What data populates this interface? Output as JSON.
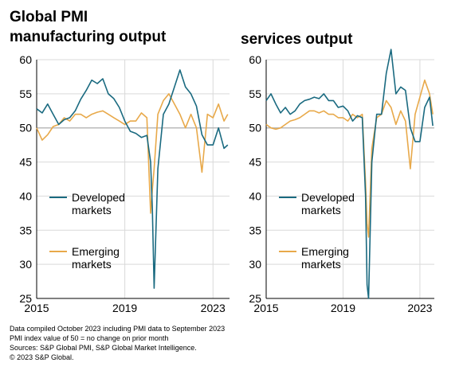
{
  "title_left_line1": "Global PMI",
  "title_left_line2": "manufacturing output",
  "title_right": "services output",
  "footnotes": [
    "Data compiled October 2023 including PMI data to September 2023",
    "PMI index value of 50 = no change on prior month",
    "Sources: S&P Global PMI, S&P Global Market Intelligence.",
    "© 2023 S&P Global."
  ],
  "colors": {
    "developed": "#1a6a80",
    "emerging": "#e8a94a",
    "reference": "#b0b0b0",
    "grid": "#d9d9d9"
  },
  "chart_data": [
    {
      "type": "line",
      "title": "manufacturing output",
      "ylim": [
        25,
        60
      ],
      "yticks": [
        25,
        30,
        35,
        40,
        45,
        50,
        55,
        60
      ],
      "xlim": [
        2015.0,
        2023.75
      ],
      "xticks": [
        2015,
        2019,
        2023
      ],
      "xtick_labels": [
        "2015",
        "2019",
        "2023"
      ],
      "reference_line": 50,
      "legend": [
        "Developed markets",
        "Emerging markets"
      ],
      "series": [
        {
          "name": "Developed markets",
          "x": [
            2015.0,
            2015.25,
            2015.5,
            2015.75,
            2016.0,
            2016.25,
            2016.5,
            2016.75,
            2017.0,
            2017.25,
            2017.5,
            2017.75,
            2018.0,
            2018.25,
            2018.5,
            2018.75,
            2019.0,
            2019.25,
            2019.5,
            2019.75,
            2020.0,
            2020.17,
            2020.25,
            2020.33,
            2020.5,
            2020.75,
            2021.0,
            2021.25,
            2021.5,
            2021.75,
            2022.0,
            2022.25,
            2022.5,
            2022.75,
            2023.0,
            2023.25,
            2023.5,
            2023.67
          ],
          "y": [
            52.8,
            52.2,
            53.5,
            52.0,
            50.5,
            51.2,
            51.5,
            52.5,
            54.2,
            55.5,
            57.0,
            56.5,
            57.2,
            55.0,
            54.3,
            53.0,
            51.0,
            49.5,
            49.2,
            48.6,
            48.9,
            45.0,
            38.0,
            26.5,
            44.0,
            52.0,
            53.5,
            56.0,
            58.5,
            56.0,
            55.0,
            53.2,
            49.0,
            47.5,
            47.5,
            50.0,
            47.0,
            47.5
          ]
        },
        {
          "name": "Emerging markets",
          "x": [
            2015.0,
            2015.25,
            2015.5,
            2015.75,
            2016.0,
            2016.25,
            2016.5,
            2016.75,
            2017.0,
            2017.25,
            2017.5,
            2017.75,
            2018.0,
            2018.25,
            2018.5,
            2018.75,
            2019.0,
            2019.25,
            2019.5,
            2019.75,
            2020.0,
            2020.17,
            2020.25,
            2020.33,
            2020.5,
            2020.75,
            2021.0,
            2021.25,
            2021.5,
            2021.75,
            2022.0,
            2022.25,
            2022.5,
            2022.75,
            2023.0,
            2023.25,
            2023.5,
            2023.67
          ],
          "y": [
            50.0,
            48.2,
            49.0,
            50.2,
            50.5,
            51.5,
            51.0,
            52.0,
            52.0,
            51.5,
            52.0,
            52.3,
            52.5,
            52.0,
            51.5,
            51.0,
            50.5,
            51.0,
            51.0,
            52.2,
            51.5,
            37.5,
            41.0,
            44.0,
            52.0,
            54.0,
            55.0,
            53.5,
            52.0,
            50.0,
            52.0,
            50.0,
            43.5,
            52.0,
            51.5,
            53.5,
            51.0,
            52.0
          ]
        }
      ]
    },
    {
      "type": "line",
      "title": "services output",
      "ylim": [
        25,
        60
      ],
      "yticks": [
        25,
        30,
        35,
        40,
        45,
        50,
        55,
        60
      ],
      "xlim": [
        2015.0,
        2023.75
      ],
      "xticks": [
        2015,
        2019,
        2023
      ],
      "xtick_labels": [
        "2015",
        "2019",
        "2023"
      ],
      "reference_line": 50,
      "legend": [
        "Developed markets",
        "Emerging markets"
      ],
      "series": [
        {
          "name": "Developed markets",
          "x": [
            2015.0,
            2015.25,
            2015.5,
            2015.75,
            2016.0,
            2016.25,
            2016.5,
            2016.75,
            2017.0,
            2017.25,
            2017.5,
            2017.75,
            2018.0,
            2018.25,
            2018.5,
            2018.75,
            2019.0,
            2019.25,
            2019.5,
            2019.75,
            2020.0,
            2020.17,
            2020.25,
            2020.33,
            2020.5,
            2020.75,
            2021.0,
            2021.25,
            2021.5,
            2021.75,
            2022.0,
            2022.25,
            2022.5,
            2022.75,
            2023.0,
            2023.25,
            2023.5,
            2023.67
          ],
          "y": [
            54.0,
            55.0,
            53.5,
            52.2,
            53.0,
            52.0,
            52.5,
            53.5,
            54.0,
            54.2,
            54.5,
            54.3,
            55.0,
            54.0,
            54.0,
            53.0,
            53.2,
            52.5,
            51.0,
            51.8,
            51.5,
            40.0,
            27.0,
            25.0,
            45.0,
            52.0,
            52.0,
            58.0,
            61.5,
            55.0,
            56.0,
            55.5,
            50.0,
            48.0,
            48.0,
            53.0,
            54.5,
            50.3
          ]
        },
        {
          "name": "Emerging markets",
          "x": [
            2015.0,
            2015.25,
            2015.5,
            2015.75,
            2016.0,
            2016.25,
            2016.5,
            2016.75,
            2017.0,
            2017.25,
            2017.5,
            2017.75,
            2018.0,
            2018.25,
            2018.5,
            2018.75,
            2019.0,
            2019.25,
            2019.5,
            2019.75,
            2020.0,
            2020.17,
            2020.25,
            2020.33,
            2020.5,
            2020.75,
            2021.0,
            2021.25,
            2021.5,
            2021.75,
            2022.0,
            2022.25,
            2022.5,
            2022.75,
            2023.0,
            2023.25,
            2023.5,
            2023.67
          ],
          "y": [
            50.5,
            50.0,
            49.8,
            50.0,
            50.5,
            51.0,
            51.2,
            51.5,
            52.0,
            52.5,
            52.5,
            52.2,
            52.5,
            52.0,
            52.0,
            51.5,
            51.5,
            51.0,
            52.0,
            51.5,
            52.0,
            42.0,
            36.0,
            34.0,
            47.0,
            51.5,
            52.0,
            54.0,
            53.0,
            50.5,
            52.5,
            51.0,
            44.0,
            52.0,
            54.5,
            57.0,
            55.0,
            52.0
          ]
        }
      ]
    }
  ]
}
